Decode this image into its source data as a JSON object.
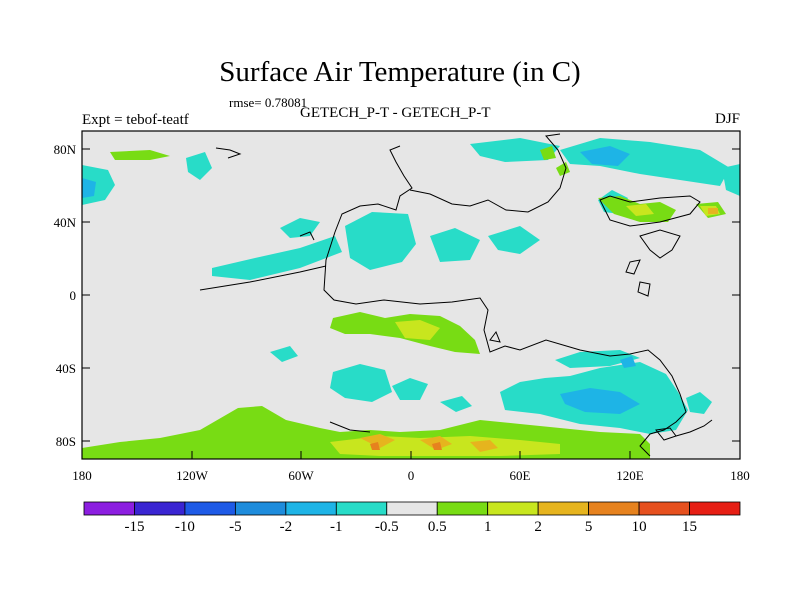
{
  "title": "Surface Air Temperature (in C)",
  "rmse_label": "rmse= 0.78081",
  "expt_label": "Expt = tebof-teatf",
  "subtitle": "GETECH_P-T - GETECH_P-T",
  "season": "DJF",
  "y_ticks": [
    "80N",
    "40N",
    "0",
    "40S",
    "80S"
  ],
  "x_ticks": [
    "180",
    "120W",
    "60W",
    "0",
    "60E",
    "120E",
    "180"
  ],
  "colorbar": {
    "labels": [
      "-15",
      "-10",
      "-5",
      "-2",
      "-1",
      "-0.5",
      "0.5",
      "1",
      "2",
      "5",
      "10",
      "15"
    ],
    "colors": [
      "#8c1ee0",
      "#3a25d2",
      "#1e5ae6",
      "#1e8cdc",
      "#1eb4e6",
      "#28dcc8",
      "#e6e6e6",
      "#78dc14",
      "#c8e61e",
      "#e6b41e",
      "#e6821e",
      "#e6501e",
      "#e61e14"
    ]
  },
  "colors": {
    "land_background": "#e6e6e6",
    "coast": "#000000"
  }
}
